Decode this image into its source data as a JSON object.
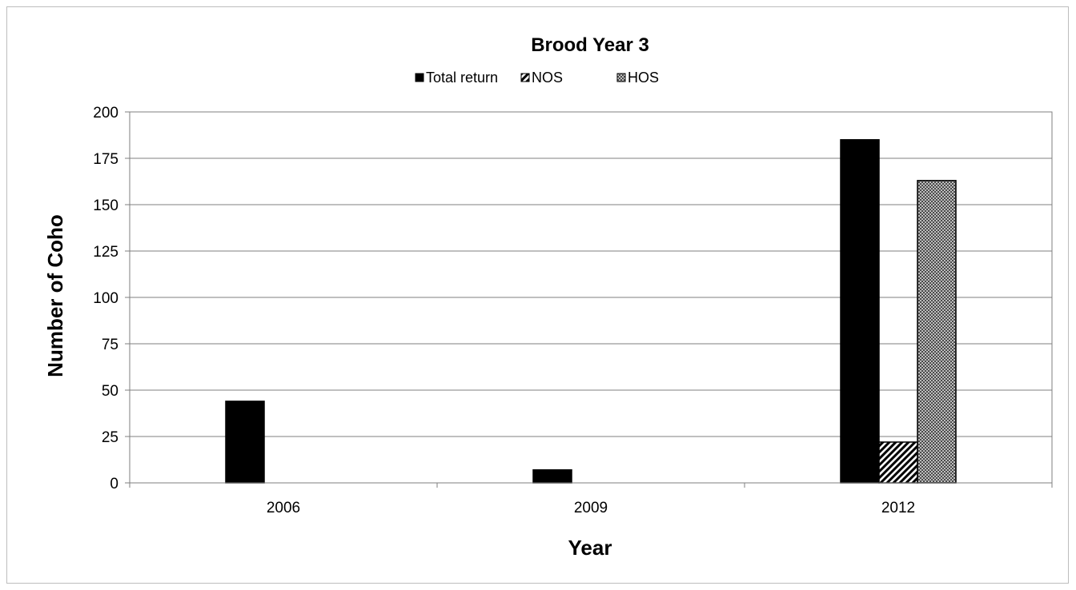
{
  "chart_data": {
    "type": "bar",
    "title": "Brood Year 3",
    "xlabel": "Year",
    "ylabel": "Number of Coho",
    "categories": [
      "2006",
      "2009",
      "2012"
    ],
    "series": [
      {
        "name": "Total return",
        "values": [
          44,
          7,
          185
        ],
        "color": "#000000",
        "pattern": "solid"
      },
      {
        "name": "NOS",
        "values": [
          0,
          0,
          22
        ],
        "color": "#000000",
        "pattern": "diagonal-stripes"
      },
      {
        "name": "HOS",
        "values": [
          0,
          0,
          163
        ],
        "color": "#000000",
        "pattern": "crosshatch"
      }
    ],
    "ylim": [
      0,
      200
    ],
    "yticks": [
      "0",
      "25",
      "50",
      "75",
      "100",
      "125",
      "150",
      "175",
      "200"
    ],
    "grid": true,
    "legend_position": "top"
  }
}
